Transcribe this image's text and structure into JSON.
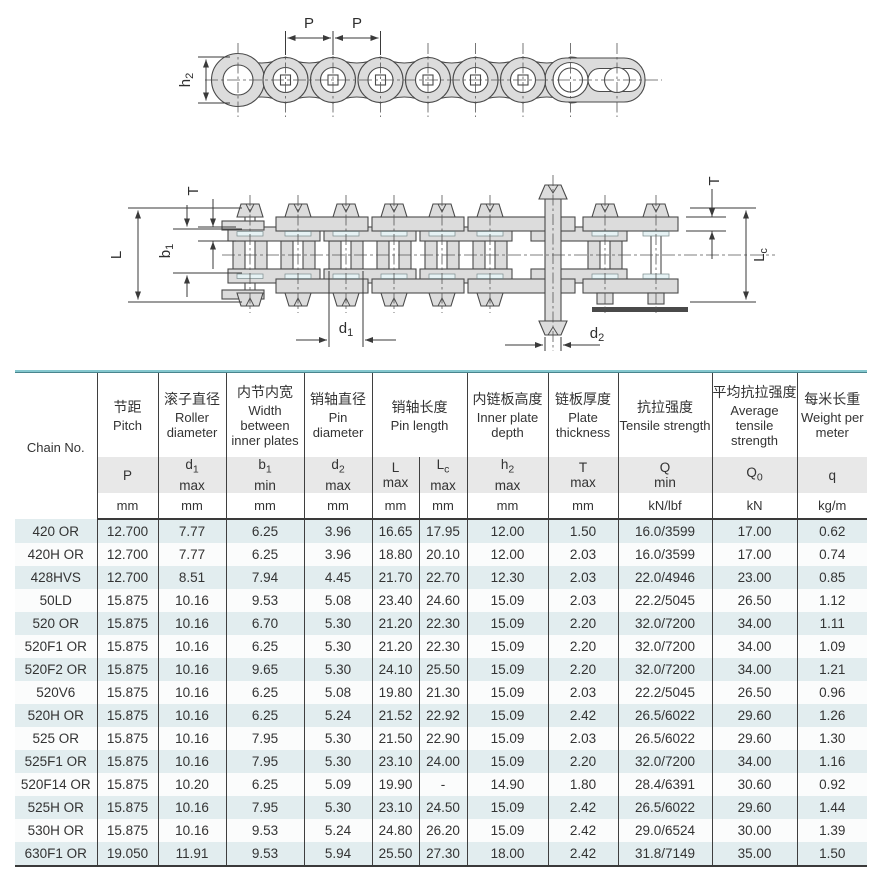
{
  "colors": {
    "accent_teal": "#5fb0b8",
    "row_tint": "#e2edef",
    "header_band": "#e8e8e8",
    "line_dark": "#3a3a3a",
    "diagram_fill": "#dcdcdc"
  },
  "diagrams": {
    "side_view": {
      "pitch_label_1": "P",
      "pitch_label_2": "P",
      "h2_base": "h",
      "h2_sub": "2"
    },
    "top_view": {
      "t_left_label": "T",
      "t_right_label": "T",
      "l_label": "L",
      "lc_base": "L",
      "lc_sub": "c",
      "b1_base": "b",
      "b1_sub": "1",
      "d1_base": "d",
      "d1_sub": "1",
      "d2_base": "d",
      "d2_sub": "2"
    }
  },
  "table": {
    "chain_no_header": "Chain No.",
    "header": {
      "pitch": {
        "cn": "节距",
        "en": "Pitch",
        "sym": "P",
        "unit": "mm"
      },
      "roller": {
        "cn": "滚子直径",
        "en": "Roller diameter",
        "sym": "d",
        "sub": "1",
        "qual": "max",
        "unit": "mm"
      },
      "width": {
        "cn": "内节内宽",
        "en": "Width between inner plates",
        "sym": "b",
        "sub": "1",
        "qual": "min",
        "unit": "mm"
      },
      "pin_dia": {
        "cn": "销轴直径",
        "en": "Pin diameter",
        "sym": "d",
        "sub": "2",
        "qual": "max",
        "unit": "mm"
      },
      "pin_len": {
        "cn": "销轴长度",
        "en": "Pin length",
        "l": {
          "sym": "L",
          "qual": "max",
          "unit": "mm"
        },
        "lc": {
          "sym": "L",
          "sub": "c",
          "qual": "max",
          "unit": "mm"
        }
      },
      "inner_depth": {
        "cn": "内链板高度",
        "en": "Inner plate depth",
        "sym": "h",
        "sub": "2",
        "qual": "max",
        "unit": "mm"
      },
      "thickness": {
        "cn": "链板厚度",
        "en": "Plate thickness",
        "sym": "T",
        "qual": "max",
        "unit": "mm"
      },
      "tensile": {
        "cn": "抗拉强度",
        "en": "Tensile strength",
        "sym": "Q",
        "qual": "min",
        "unit": "kN/lbf"
      },
      "avg_tensile": {
        "cn": "平均抗拉强度",
        "en": "Average tensile strength",
        "sym": "Q",
        "sub": "0",
        "unit": "kN"
      },
      "weight": {
        "cn": "每米长重",
        "en": "Weight per meter",
        "sym": "q",
        "unit": "kg/m"
      }
    },
    "rows": [
      [
        "420 OR",
        "12.700",
        "7.77",
        "6.25",
        "3.96",
        "16.65",
        "17.95",
        "12.00",
        "1.50",
        "16.0/3599",
        "17.00",
        "0.62"
      ],
      [
        "420H OR",
        "12.700",
        "7.77",
        "6.25",
        "3.96",
        "18.80",
        "20.10",
        "12.00",
        "2.03",
        "16.0/3599",
        "17.00",
        "0.74"
      ],
      [
        "428HVS",
        "12.700",
        "8.51",
        "7.94",
        "4.45",
        "21.70",
        "22.70",
        "12.30",
        "2.03",
        "22.0/4946",
        "23.00",
        "0.85"
      ],
      [
        "50LD",
        "15.875",
        "10.16",
        "9.53",
        "5.08",
        "23.40",
        "24.60",
        "15.09",
        "2.03",
        "22.2/5045",
        "26.50",
        "1.12"
      ],
      [
        "520 OR",
        "15.875",
        "10.16",
        "6.70",
        "5.30",
        "21.20",
        "22.30",
        "15.09",
        "2.20",
        "32.0/7200",
        "34.00",
        "1.11"
      ],
      [
        "520F1 OR",
        "15.875",
        "10.16",
        "6.25",
        "5.30",
        "21.20",
        "22.30",
        "15.09",
        "2.20",
        "32.0/7200",
        "34.00",
        "1.09"
      ],
      [
        "520F2 OR",
        "15.875",
        "10.16",
        "9.65",
        "5.30",
        "24.10",
        "25.50",
        "15.09",
        "2.20",
        "32.0/7200",
        "34.00",
        "1.21"
      ],
      [
        "520V6",
        "15.875",
        "10.16",
        "6.25",
        "5.08",
        "19.80",
        "21.30",
        "15.09",
        "2.03",
        "22.2/5045",
        "26.50",
        "0.96"
      ],
      [
        "520H OR",
        "15.875",
        "10.16",
        "6.25",
        "5.24",
        "21.52",
        "22.92",
        "15.09",
        "2.42",
        "26.5/6022",
        "29.60",
        "1.26"
      ],
      [
        "525 OR",
        "15.875",
        "10.16",
        "7.95",
        "5.30",
        "21.50",
        "22.90",
        "15.09",
        "2.03",
        "26.5/6022",
        "29.60",
        "1.30"
      ],
      [
        "525F1 OR",
        "15.875",
        "10.16",
        "7.95",
        "5.30",
        "23.10",
        "24.00",
        "15.09",
        "2.20",
        "32.0/7200",
        "34.00",
        "1.16"
      ],
      [
        "520F14 OR",
        "15.875",
        "10.20",
        "6.25",
        "5.09",
        "19.90",
        "-",
        "14.90",
        "1.80",
        "28.4/6391",
        "30.60",
        "0.92"
      ],
      [
        "525H OR",
        "15.875",
        "10.16",
        "7.95",
        "5.30",
        "23.10",
        "24.50",
        "15.09",
        "2.42",
        "26.5/6022",
        "29.60",
        "1.44"
      ],
      [
        "530H OR",
        "15.875",
        "10.16",
        "9.53",
        "5.24",
        "24.80",
        "26.20",
        "15.09",
        "2.42",
        "29.0/6524",
        "30.00",
        "1.39"
      ],
      [
        "630F1 OR",
        "19.050",
        "11.91",
        "9.53",
        "5.94",
        "25.50",
        "27.30",
        "18.00",
        "2.42",
        "31.8/7149",
        "35.00",
        "1.50"
      ]
    ]
  }
}
